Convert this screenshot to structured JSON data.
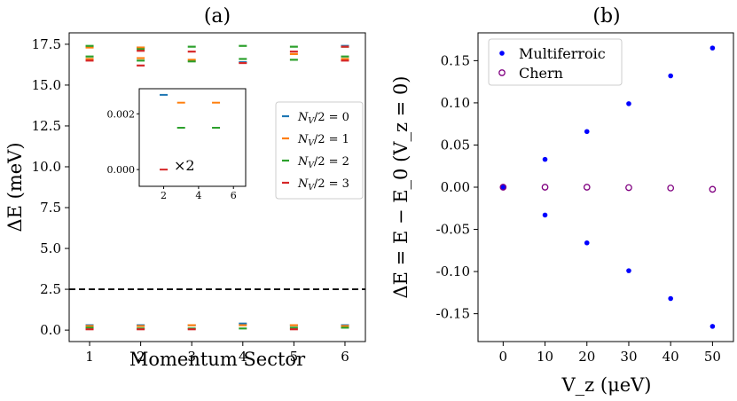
{
  "chart_data": [
    {
      "type": "scatter",
      "title": "(a)",
      "xlabel": "Momentum Sector",
      "ylabel": "ΔE (meV)",
      "xlim": [
        0.6,
        6.4
      ],
      "ylim": [
        -0.7,
        18.2
      ],
      "xticks": [
        "1",
        "2",
        "3",
        "4",
        "5",
        "6"
      ],
      "yticks": [
        "0.0",
        "2.5",
        "5.0",
        "7.5",
        "10.0",
        "12.5",
        "15.0",
        "17.5"
      ],
      "threshold_line": 2.5,
      "marker": "horizontal-dash",
      "legend_position": "right",
      "series": [
        {
          "name": "N_V/2 = 0",
          "color": "#1f77b4",
          "x": [
            1,
            1,
            2,
            2,
            3,
            4,
            4,
            5,
            6,
            6
          ],
          "y": [
            0.3,
            17.35,
            0.3,
            17.3,
            0.3,
            0.4,
            16.4,
            0.3,
            0.3,
            17.4
          ]
        },
        {
          "name": "N_V/2 = 1",
          "color": "#ff7f0e",
          "x": [
            1,
            1,
            1,
            2,
            2,
            2,
            3,
            3,
            4,
            5,
            5,
            6,
            6
          ],
          "y": [
            0.25,
            16.6,
            17.3,
            0.25,
            16.65,
            17.3,
            0.3,
            16.55,
            0.3,
            0.3,
            16.9,
            0.25,
            16.6
          ]
        },
        {
          "name": "N_V/2 = 2",
          "color": "#2ca02c",
          "x": [
            1,
            1,
            1,
            2,
            2,
            2,
            3,
            3,
            3,
            4,
            4,
            4,
            5,
            5,
            5,
            6,
            6,
            6
          ],
          "y": [
            0.15,
            16.75,
            17.4,
            0.1,
            16.5,
            17.2,
            0.1,
            16.45,
            17.35,
            0.1,
            16.6,
            17.4,
            0.15,
            16.55,
            17.35,
            0.15,
            16.75,
            17.35
          ],
          "extra": []
        },
        {
          "name": "N_V/2 = 3",
          "color": "#d62728",
          "x": [
            1,
            1,
            2,
            2,
            2,
            3,
            3,
            4,
            5,
            5,
            6,
            6
          ],
          "y": [
            0.05,
            16.5,
            0.05,
            16.2,
            17.1,
            0.05,
            17.05,
            16.35,
            0.05,
            17.05,
            16.5,
            17.35
          ]
        }
      ],
      "inset": {
        "xticks": [
          "2",
          "4",
          "6"
        ],
        "yticks": [
          "0.000",
          "0.002"
        ],
        "xlim": [
          0.6,
          6.7
        ],
        "ylim": [
          -0.0006,
          0.0029
        ],
        "annotation": "×2",
        "marks": [
          {
            "series": 0,
            "x": 2,
            "y": 0.00268
          },
          {
            "series": 1,
            "x": 3,
            "y": 0.0024
          },
          {
            "series": 1,
            "x": 5,
            "y": 0.0024
          },
          {
            "series": 2,
            "x": 3,
            "y": 0.0015
          },
          {
            "series": 2,
            "x": 5,
            "y": 0.0015
          },
          {
            "series": 3,
            "x": 2,
            "y": 0.0
          }
        ]
      }
    },
    {
      "type": "scatter",
      "title": "(b)",
      "xlabel": "V_z (μeV)",
      "ylabel": "ΔE = E − E_0 (V_z = 0)",
      "xlim": [
        -6,
        55
      ],
      "ylim": [
        -0.183,
        0.183
      ],
      "xticks": [
        "0",
        "10",
        "20",
        "30",
        "40",
        "50"
      ],
      "yticks": [
        "-0.15",
        "-0.10",
        "-0.05",
        "0.00",
        "0.05",
        "0.10",
        "0.15"
      ],
      "legend_position": "top-left",
      "series": [
        {
          "name": "Multiferroic",
          "color": "#0000ff",
          "marker": "filled-circle",
          "x": [
            0,
            0,
            10,
            10,
            20,
            20,
            30,
            30,
            40,
            40,
            50,
            50
          ],
          "y": [
            0,
            0,
            0.033,
            -0.033,
            0.066,
            -0.066,
            0.099,
            -0.099,
            0.132,
            -0.132,
            0.165,
            -0.165
          ]
        },
        {
          "name": "Chern",
          "color": "#800080",
          "marker": "open-circle",
          "x": [
            0,
            10,
            20,
            30,
            40,
            50
          ],
          "y": [
            0.0,
            0.0,
            0.0,
            -0.0005,
            -0.001,
            -0.0025
          ]
        }
      ]
    }
  ]
}
